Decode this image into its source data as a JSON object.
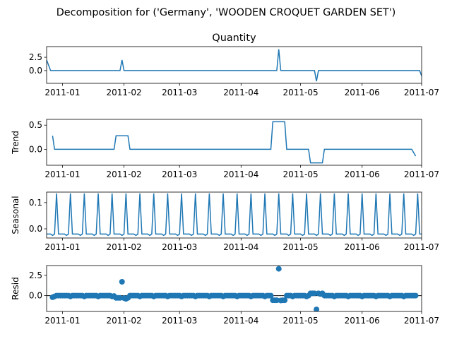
{
  "figure": {
    "suptitle": "Decomposition for ('Germany', 'WOODEN CROQUET GARDEN SET')"
  },
  "chart_data": [
    {
      "type": "line",
      "title": "Quantity",
      "ylabel": "",
      "xlim": [
        "2010-12-24",
        "2011-07-01"
      ],
      "ylim": [
        -2.4,
        4.5
      ],
      "yticks": [
        0.0,
        2.5
      ],
      "ytick_labels": [
        "0.0",
        "2.5"
      ],
      "xtick_labels": [
        "2011-01",
        "2011-02",
        "2011-03",
        "2011-04",
        "2011-05",
        "2011-06",
        "2011-07"
      ],
      "xticks": [
        "2011-01-01",
        "2011-02-01",
        "2011-03-01",
        "2011-04-01",
        "2011-05-01",
        "2011-06-01",
        "2011-07-01"
      ],
      "points": [
        {
          "date": "2010-12-24",
          "value": 2.0
        },
        {
          "date": "2010-12-26",
          "value": 0.0
        },
        {
          "date": "2011-01-30",
          "value": 0.0
        },
        {
          "date": "2011-01-31",
          "value": 2.0
        },
        {
          "date": "2011-02-01",
          "value": 0.0
        },
        {
          "date": "2011-04-19",
          "value": 0.0
        },
        {
          "date": "2011-04-20",
          "value": 4.0
        },
        {
          "date": "2011-04-21",
          "value": 0.0
        },
        {
          "date": "2011-05-08",
          "value": 0.0
        },
        {
          "date": "2011-05-09",
          "value": -2.0
        },
        {
          "date": "2011-05-10",
          "value": 0.0
        },
        {
          "date": "2011-06-30",
          "value": 0.0
        },
        {
          "date": "2011-07-01",
          "value": -1.0
        }
      ]
    },
    {
      "type": "line",
      "title": "",
      "ylabel": "Trend",
      "xlim": [
        "2010-12-24",
        "2011-07-01"
      ],
      "ylim": [
        -0.33,
        0.62
      ],
      "yticks": [
        0.0,
        0.5
      ],
      "ytick_labels": [
        "0.0",
        "0.5"
      ],
      "xtick_labels": [
        "2011-01",
        "2011-02",
        "2011-03",
        "2011-04",
        "2011-05",
        "2011-06",
        "2011-07"
      ],
      "xticks": [
        "2011-01-01",
        "2011-02-01",
        "2011-03-01",
        "2011-04-01",
        "2011-05-01",
        "2011-06-01",
        "2011-07-01"
      ],
      "points": [
        {
          "date": "2010-12-27",
          "value": 0.28
        },
        {
          "date": "2010-12-28",
          "value": 0.0
        },
        {
          "date": "2011-01-27",
          "value": 0.0
        },
        {
          "date": "2011-01-28",
          "value": 0.28
        },
        {
          "date": "2011-02-03",
          "value": 0.28
        },
        {
          "date": "2011-02-04",
          "value": 0.0
        },
        {
          "date": "2011-04-16",
          "value": 0.0
        },
        {
          "date": "2011-04-17",
          "value": 0.57
        },
        {
          "date": "2011-04-23",
          "value": 0.57
        },
        {
          "date": "2011-04-24",
          "value": 0.0
        },
        {
          "date": "2011-05-05",
          "value": 0.0
        },
        {
          "date": "2011-05-06",
          "value": -0.28
        },
        {
          "date": "2011-05-12",
          "value": -0.28
        },
        {
          "date": "2011-05-13",
          "value": 0.0
        },
        {
          "date": "2011-06-26",
          "value": 0.0
        },
        {
          "date": "2011-06-28",
          "value": -0.14
        }
      ]
    },
    {
      "type": "line",
      "title": "",
      "ylabel": "Seasonal",
      "xlim": [
        "2010-12-24",
        "2011-07-01"
      ],
      "ylim": [
        -0.035,
        0.14
      ],
      "yticks": [
        0.0,
        0.1
      ],
      "ytick_labels": [
        "0.0",
        "0.1"
      ],
      "xtick_labels": [
        "2011-01",
        "2011-02",
        "2011-03",
        "2011-04",
        "2011-05",
        "2011-06",
        "2011-07"
      ],
      "xticks": [
        "2011-01-01",
        "2011-02-01",
        "2011-03-01",
        "2011-04-01",
        "2011-05-01",
        "2011-06-01",
        "2011-07-01"
      ],
      "period_days": 7,
      "first_peak": "2010-12-29",
      "weekly_pattern": [
        0.135,
        -0.02,
        -0.02,
        -0.02,
        -0.02,
        -0.025,
        -0.02
      ]
    },
    {
      "type": "scatter",
      "title": "",
      "ylabel": "Resid",
      "xlim": [
        "2010-12-24",
        "2011-07-01"
      ],
      "ylim": [
        -1.95,
        3.7
      ],
      "yticks": [
        0.0,
        2.5
      ],
      "ytick_labels": [
        "0.0",
        "2.5"
      ],
      "xtick_labels": [
        "2011-01",
        "2011-02",
        "2011-03",
        "2011-04",
        "2011-05",
        "2011-06",
        "2011-07"
      ],
      "xticks": [
        "2011-01-01",
        "2011-02-01",
        "2011-03-01",
        "2011-04-01",
        "2011-05-01",
        "2011-06-01",
        "2011-07-01"
      ],
      "baseline": 0.0,
      "points": [
        {
          "date": "2010-12-27",
          "value": -0.2
        },
        {
          "date": "2010-12-28",
          "value": -0.1
        },
        {
          "date": "2010-12-29",
          "value": 0.0
        },
        {
          "date": "2010-12-30",
          "value": 0.0
        },
        {
          "date": "2010-12-31",
          "value": 0.0
        },
        {
          "date": "2011-01-01",
          "value": 0.0
        },
        {
          "date": "2011-01-02",
          "value": 0.0
        },
        {
          "date": "2011-01-03",
          "value": 0.0
        },
        {
          "date": "2011-01-04",
          "value": 0.0
        },
        {
          "date": "2011-01-05",
          "value": -0.1
        },
        {
          "date": "2011-01-06",
          "value": 0.0
        },
        {
          "date": "2011-01-07",
          "value": 0.0
        },
        {
          "date": "2011-01-08",
          "value": 0.0
        },
        {
          "date": "2011-01-09",
          "value": 0.0
        },
        {
          "date": "2011-01-10",
          "value": 0.0
        },
        {
          "date": "2011-01-11",
          "value": 0.0
        },
        {
          "date": "2011-01-12",
          "value": -0.1
        },
        {
          "date": "2011-01-13",
          "value": 0.0
        },
        {
          "date": "2011-01-14",
          "value": 0.0
        },
        {
          "date": "2011-01-15",
          "value": 0.0
        },
        {
          "date": "2011-01-16",
          "value": 0.0
        },
        {
          "date": "2011-01-17",
          "value": 0.0
        },
        {
          "date": "2011-01-18",
          "value": 0.0
        },
        {
          "date": "2011-01-19",
          "value": -0.1
        },
        {
          "date": "2011-01-20",
          "value": 0.0
        },
        {
          "date": "2011-01-21",
          "value": 0.0
        },
        {
          "date": "2011-01-22",
          "value": 0.0
        },
        {
          "date": "2011-01-23",
          "value": 0.0
        },
        {
          "date": "2011-01-24",
          "value": 0.0
        },
        {
          "date": "2011-01-25",
          "value": 0.0
        },
        {
          "date": "2011-01-26",
          "value": -0.1
        },
        {
          "date": "2011-01-27",
          "value": -0.05
        },
        {
          "date": "2011-01-28",
          "value": -0.28
        },
        {
          "date": "2011-01-29",
          "value": -0.28
        },
        {
          "date": "2011-01-30",
          "value": -0.28
        },
        {
          "date": "2011-01-31",
          "value": 1.7
        },
        {
          "date": "2011-02-01",
          "value": -0.3
        },
        {
          "date": "2011-02-02",
          "value": -0.4
        },
        {
          "date": "2011-02-03",
          "value": -0.28
        },
        {
          "date": "2011-02-04",
          "value": 0.0
        },
        {
          "date": "2011-02-05",
          "value": 0.0
        },
        {
          "date": "2011-02-06",
          "value": 0.0
        },
        {
          "date": "2011-02-07",
          "value": 0.0
        },
        {
          "date": "2011-02-08",
          "value": 0.0
        },
        {
          "date": "2011-02-09",
          "value": -0.1
        },
        {
          "date": "2011-02-10",
          "value": 0.0
        },
        {
          "date": "2011-02-11",
          "value": 0.0
        },
        {
          "date": "2011-02-12",
          "value": 0.0
        },
        {
          "date": "2011-02-13",
          "value": 0.0
        },
        {
          "date": "2011-02-14",
          "value": 0.0
        },
        {
          "date": "2011-02-15",
          "value": 0.0
        },
        {
          "date": "2011-02-16",
          "value": -0.1
        },
        {
          "date": "2011-02-17",
          "value": 0.0
        },
        {
          "date": "2011-02-18",
          "value": 0.0
        },
        {
          "date": "2011-02-19",
          "value": 0.0
        },
        {
          "date": "2011-02-20",
          "value": 0.0
        },
        {
          "date": "2011-02-21",
          "value": 0.0
        },
        {
          "date": "2011-02-22",
          "value": 0.0
        },
        {
          "date": "2011-02-23",
          "value": -0.1
        },
        {
          "date": "2011-02-24",
          "value": 0.0
        },
        {
          "date": "2011-02-25",
          "value": 0.0
        },
        {
          "date": "2011-02-26",
          "value": 0.0
        },
        {
          "date": "2011-02-27",
          "value": 0.0
        },
        {
          "date": "2011-02-28",
          "value": 0.0
        },
        {
          "date": "2011-03-01",
          "value": 0.0
        },
        {
          "date": "2011-03-02",
          "value": -0.1
        },
        {
          "date": "2011-03-03",
          "value": 0.0
        },
        {
          "date": "2011-03-04",
          "value": 0.0
        },
        {
          "date": "2011-03-05",
          "value": 0.0
        },
        {
          "date": "2011-03-06",
          "value": 0.0
        },
        {
          "date": "2011-03-07",
          "value": 0.0
        },
        {
          "date": "2011-03-08",
          "value": 0.0
        },
        {
          "date": "2011-03-09",
          "value": -0.1
        },
        {
          "date": "2011-03-10",
          "value": 0.0
        },
        {
          "date": "2011-03-11",
          "value": 0.0
        },
        {
          "date": "2011-03-12",
          "value": 0.0
        },
        {
          "date": "2011-03-13",
          "value": 0.0
        },
        {
          "date": "2011-03-14",
          "value": 0.0
        },
        {
          "date": "2011-03-15",
          "value": 0.0
        },
        {
          "date": "2011-03-16",
          "value": -0.1
        },
        {
          "date": "2011-03-17",
          "value": 0.0
        },
        {
          "date": "2011-03-18",
          "value": 0.0
        },
        {
          "date": "2011-03-19",
          "value": 0.0
        },
        {
          "date": "2011-03-20",
          "value": 0.0
        },
        {
          "date": "2011-03-21",
          "value": 0.0
        },
        {
          "date": "2011-03-22",
          "value": 0.0
        },
        {
          "date": "2011-03-23",
          "value": -0.1
        },
        {
          "date": "2011-03-24",
          "value": 0.0
        },
        {
          "date": "2011-03-25",
          "value": 0.0
        },
        {
          "date": "2011-03-26",
          "value": 0.0
        },
        {
          "date": "2011-03-27",
          "value": 0.0
        },
        {
          "date": "2011-03-28",
          "value": 0.0
        },
        {
          "date": "2011-03-29",
          "value": 0.0
        },
        {
          "date": "2011-03-30",
          "value": -0.1
        },
        {
          "date": "2011-03-31",
          "value": 0.0
        },
        {
          "date": "2011-04-01",
          "value": 0.0
        },
        {
          "date": "2011-04-02",
          "value": 0.0
        },
        {
          "date": "2011-04-03",
          "value": 0.0
        },
        {
          "date": "2011-04-04",
          "value": 0.0
        },
        {
          "date": "2011-04-05",
          "value": 0.0
        },
        {
          "date": "2011-04-06",
          "value": -0.1
        },
        {
          "date": "2011-04-07",
          "value": 0.0
        },
        {
          "date": "2011-04-08",
          "value": 0.0
        },
        {
          "date": "2011-04-09",
          "value": 0.0
        },
        {
          "date": "2011-04-10",
          "value": 0.0
        },
        {
          "date": "2011-04-11",
          "value": 0.0
        },
        {
          "date": "2011-04-12",
          "value": 0.0
        },
        {
          "date": "2011-04-13",
          "value": -0.1
        },
        {
          "date": "2011-04-14",
          "value": 0.0
        },
        {
          "date": "2011-04-15",
          "value": 0.0
        },
        {
          "date": "2011-04-16",
          "value": 0.0
        },
        {
          "date": "2011-04-17",
          "value": -0.57
        },
        {
          "date": "2011-04-18",
          "value": -0.57
        },
        {
          "date": "2011-04-19",
          "value": -0.57
        },
        {
          "date": "2011-04-20",
          "value": 3.3
        },
        {
          "date": "2011-04-21",
          "value": -0.6
        },
        {
          "date": "2011-04-22",
          "value": -0.57
        },
        {
          "date": "2011-04-23",
          "value": -0.57
        },
        {
          "date": "2011-04-24",
          "value": 0.0
        },
        {
          "date": "2011-04-25",
          "value": 0.0
        },
        {
          "date": "2011-04-26",
          "value": 0.0
        },
        {
          "date": "2011-04-27",
          "value": -0.1
        },
        {
          "date": "2011-04-28",
          "value": 0.0
        },
        {
          "date": "2011-04-29",
          "value": 0.0
        },
        {
          "date": "2011-04-30",
          "value": 0.0
        },
        {
          "date": "2011-05-01",
          "value": 0.0
        },
        {
          "date": "2011-05-02",
          "value": 0.0
        },
        {
          "date": "2011-05-03",
          "value": 0.0
        },
        {
          "date": "2011-05-04",
          "value": -0.1
        },
        {
          "date": "2011-05-05",
          "value": 0.0
        },
        {
          "date": "2011-05-06",
          "value": 0.28
        },
        {
          "date": "2011-05-07",
          "value": 0.28
        },
        {
          "date": "2011-05-08",
          "value": 0.28
        },
        {
          "date": "2011-05-09",
          "value": -1.7
        },
        {
          "date": "2011-05-10",
          "value": 0.28
        },
        {
          "date": "2011-05-11",
          "value": 0.2
        },
        {
          "date": "2011-05-12",
          "value": 0.28
        },
        {
          "date": "2011-05-13",
          "value": 0.0
        },
        {
          "date": "2011-05-14",
          "value": 0.0
        },
        {
          "date": "2011-05-15",
          "value": 0.0
        },
        {
          "date": "2011-05-16",
          "value": 0.0
        },
        {
          "date": "2011-05-17",
          "value": 0.0
        },
        {
          "date": "2011-05-18",
          "value": -0.1
        },
        {
          "date": "2011-05-19",
          "value": 0.0
        },
        {
          "date": "2011-05-20",
          "value": 0.0
        },
        {
          "date": "2011-05-21",
          "value": 0.0
        },
        {
          "date": "2011-05-22",
          "value": 0.0
        },
        {
          "date": "2011-05-23",
          "value": 0.0
        },
        {
          "date": "2011-05-24",
          "value": 0.0
        },
        {
          "date": "2011-05-25",
          "value": -0.1
        },
        {
          "date": "2011-05-26",
          "value": 0.0
        },
        {
          "date": "2011-05-27",
          "value": 0.0
        },
        {
          "date": "2011-05-28",
          "value": 0.0
        },
        {
          "date": "2011-05-29",
          "value": 0.0
        },
        {
          "date": "2011-05-30",
          "value": 0.0
        },
        {
          "date": "2011-05-31",
          "value": 0.0
        },
        {
          "date": "2011-06-01",
          "value": -0.1
        },
        {
          "date": "2011-06-02",
          "value": 0.0
        },
        {
          "date": "2011-06-03",
          "value": 0.0
        },
        {
          "date": "2011-06-04",
          "value": 0.0
        },
        {
          "date": "2011-06-05",
          "value": 0.0
        },
        {
          "date": "2011-06-06",
          "value": 0.0
        },
        {
          "date": "2011-06-07",
          "value": 0.0
        },
        {
          "date": "2011-06-08",
          "value": -0.1
        },
        {
          "date": "2011-06-09",
          "value": 0.0
        },
        {
          "date": "2011-06-10",
          "value": 0.0
        },
        {
          "date": "2011-06-11",
          "value": 0.0
        },
        {
          "date": "2011-06-12",
          "value": 0.0
        },
        {
          "date": "2011-06-13",
          "value": 0.0
        },
        {
          "date": "2011-06-14",
          "value": 0.0
        },
        {
          "date": "2011-06-15",
          "value": -0.1
        },
        {
          "date": "2011-06-16",
          "value": 0.0
        },
        {
          "date": "2011-06-17",
          "value": 0.0
        },
        {
          "date": "2011-06-18",
          "value": 0.0
        },
        {
          "date": "2011-06-19",
          "value": 0.0
        },
        {
          "date": "2011-06-20",
          "value": 0.0
        },
        {
          "date": "2011-06-21",
          "value": 0.0
        },
        {
          "date": "2011-06-22",
          "value": -0.1
        },
        {
          "date": "2011-06-23",
          "value": 0.0
        },
        {
          "date": "2011-06-24",
          "value": 0.0
        },
        {
          "date": "2011-06-25",
          "value": 0.0
        },
        {
          "date": "2011-06-26",
          "value": 0.0
        },
        {
          "date": "2011-06-27",
          "value": 0.0
        },
        {
          "date": "2011-06-28",
          "value": 0.0
        }
      ]
    }
  ]
}
